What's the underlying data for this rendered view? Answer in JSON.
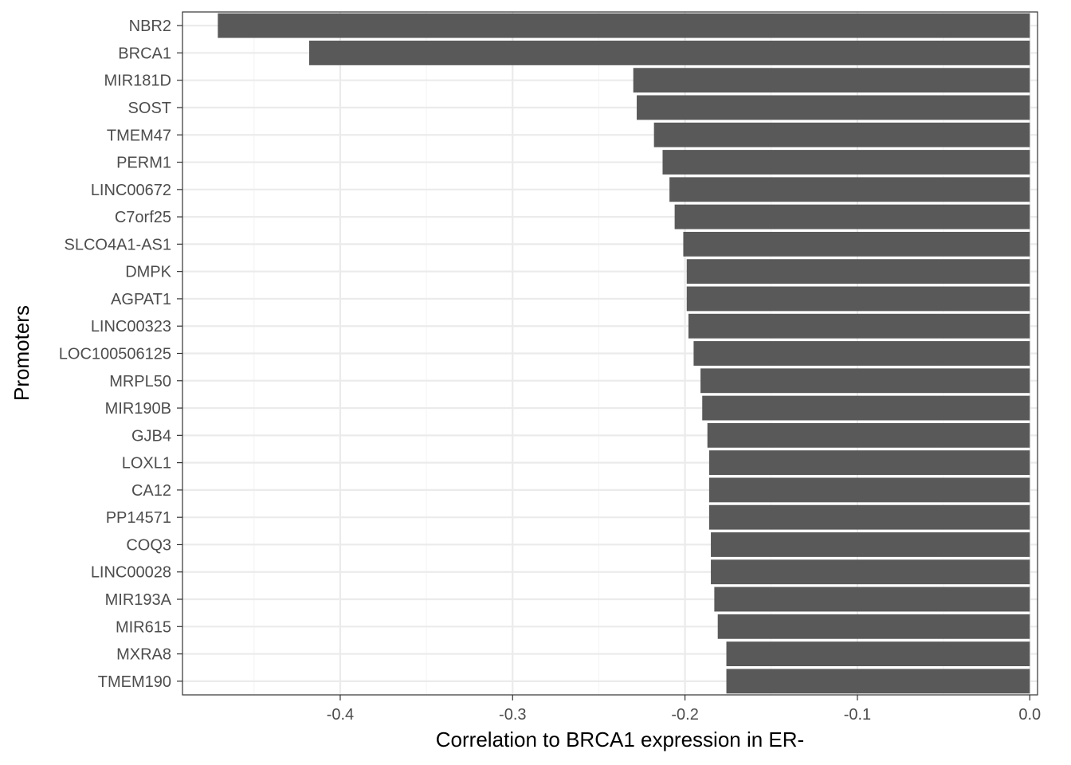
{
  "chart_data": {
    "type": "bar",
    "orientation": "horizontal",
    "title": "",
    "xlabel": "Correlation to BRCA1 expression in ER-",
    "ylabel": "Promoters",
    "categories": [
      "NBR2",
      "BRCA1",
      "MIR181D",
      "SOST",
      "TMEM47",
      "PERM1",
      "LINC00672",
      "C7orf25",
      "SLCO4A1-AS1",
      "DMPK",
      "AGPAT1",
      "LINC00323",
      "LOC100506125",
      "MRPL50",
      "MIR190B",
      "GJB4",
      "LOXL1",
      "CA12",
      "PP14571",
      "COQ3",
      "LINC00028",
      "MIR193A",
      "MIR615",
      "MXRA8",
      "TMEM190"
    ],
    "values": [
      -0.471,
      -0.418,
      -0.23,
      -0.228,
      -0.218,
      -0.213,
      -0.209,
      -0.206,
      -0.201,
      -0.199,
      -0.199,
      -0.198,
      -0.195,
      -0.191,
      -0.19,
      -0.187,
      -0.186,
      -0.186,
      -0.186,
      -0.185,
      -0.185,
      -0.183,
      -0.181,
      -0.176,
      -0.176
    ],
    "xlim": [
      -0.4915,
      0.0045
    ],
    "x_ticks": [
      -0.4,
      -0.3,
      -0.2,
      -0.1,
      0.0
    ],
    "x_tick_labels": [
      "-0.4",
      "-0.3",
      "-0.2",
      "-0.1",
      "0.0"
    ],
    "grid": true,
    "colors": {
      "bar": "#595959",
      "grid_major": "#ebebeb",
      "grid_minor": "#f5f5f5",
      "panel_border": "#333333",
      "tick_text": "#4d4d4d",
      "title_text": "#000000"
    }
  }
}
